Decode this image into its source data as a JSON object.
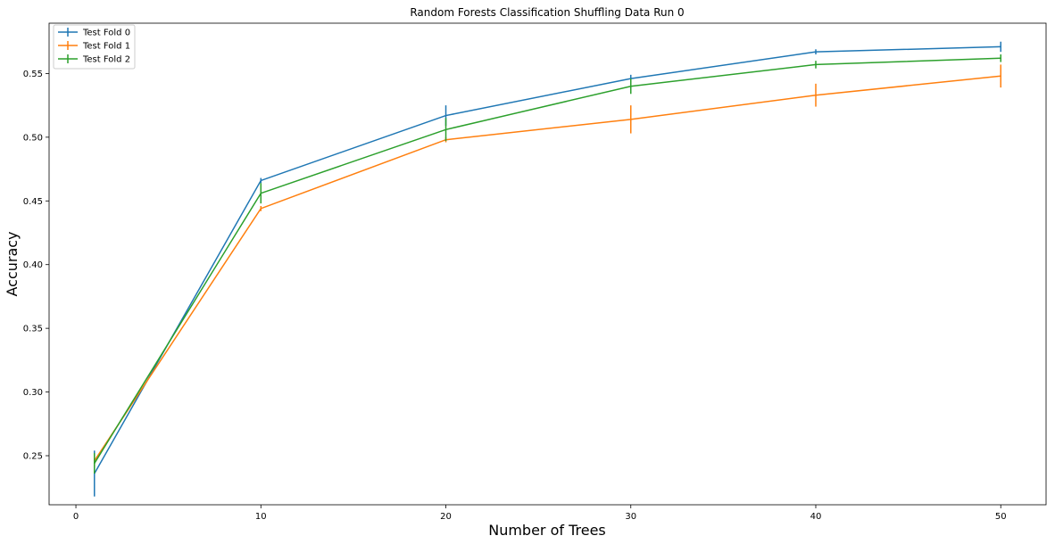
{
  "chart_data": {
    "type": "line",
    "title": "Random Forests Classification Shuffling Data Run 0",
    "xlabel": "Number of Trees",
    "ylabel": "Accuracy",
    "x": [
      1,
      10,
      20,
      30,
      40,
      50
    ],
    "xlim": [
      -1.45,
      52.45
    ],
    "ylim": [
      0.2115,
      0.5895
    ],
    "xticks": [
      0,
      10,
      20,
      30,
      40,
      50
    ],
    "yticks": [
      0.25,
      0.3,
      0.35,
      0.4,
      0.45,
      0.5,
      0.55
    ],
    "ytick_labels": [
      "0.25",
      "0.30",
      "0.35",
      "0.40",
      "0.45",
      "0.50",
      "0.55"
    ],
    "legend_position": "top-left",
    "series": [
      {
        "name": "Test Fold 0",
        "color": "#1f77b4",
        "values": [
          0.236,
          0.466,
          0.517,
          0.546,
          0.567,
          0.571
        ],
        "errors": [
          0.018,
          0.002,
          0.008,
          0.003,
          0.002,
          0.004
        ]
      },
      {
        "name": "Test Fold 1",
        "color": "#ff7f0e",
        "values": [
          0.246,
          0.444,
          0.498,
          0.514,
          0.533,
          0.548
        ],
        "errors": [
          0.004,
          0.002,
          0.002,
          0.011,
          0.009,
          0.009
        ]
      },
      {
        "name": "Test Fold 2",
        "color": "#2ca02c",
        "values": [
          0.244,
          0.456,
          0.506,
          0.54,
          0.557,
          0.562
        ],
        "errors": [
          0.008,
          0.008,
          0.009,
          0.006,
          0.003,
          0.003
        ]
      }
    ]
  }
}
